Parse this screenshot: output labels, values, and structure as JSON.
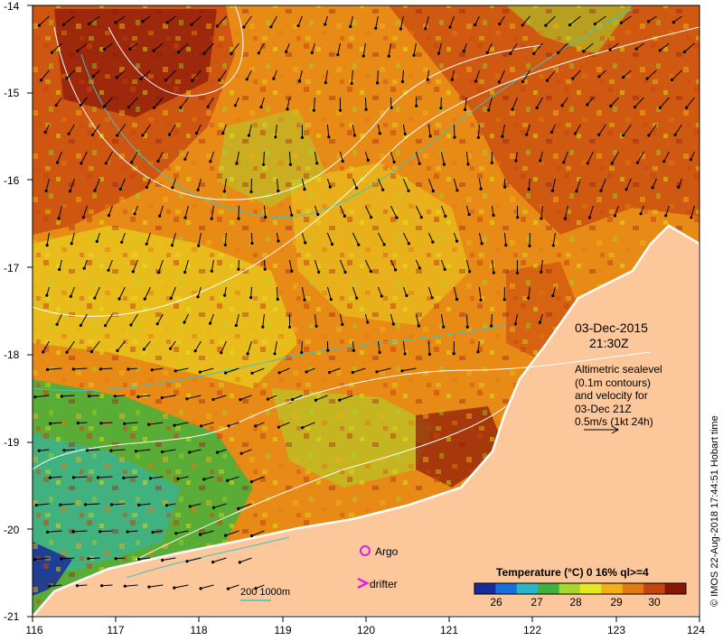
{
  "date": "03-Dec-2015",
  "time": "21:30Z",
  "info_lines": [
    "Altimetric sealevel",
    "(0.1m contours)",
    "and velocity for",
    "03-Dec 21Z",
    "0.5m/s (1kt 24h)"
  ],
  "credit": "© IMOS 22-Aug-2018 17:44:51 Hobart time",
  "legend": {
    "title": "Temperature (°C) 0 16% ql>=4",
    "ticks": [
      "26",
      "27",
      "28",
      "29",
      "30"
    ],
    "colors": [
      "#1a2a9a",
      "#1a6fe0",
      "#27b6c8",
      "#3fb23c",
      "#a6d82c",
      "#e8e820",
      "#f2b016",
      "#e27a10",
      "#c64410",
      "#8a1608"
    ]
  },
  "markers": {
    "argo": "Argo",
    "drifter": "drifter"
  },
  "scale_label": "200  1000m",
  "axes": {
    "x_ticks": [
      "116",
      "117",
      "118",
      "119",
      "120",
      "121",
      "122",
      "123",
      "124"
    ],
    "y_ticks": [
      "-14",
      "-15",
      "-16",
      "-17",
      "-18",
      "-19",
      "-20",
      "-21"
    ]
  },
  "colors": {
    "land": "#fcc79a",
    "coast_outline": "#ffffff",
    "isobath": "#3ec3c3",
    "contour": "#ffffff",
    "marker": "#e020e0"
  }
}
